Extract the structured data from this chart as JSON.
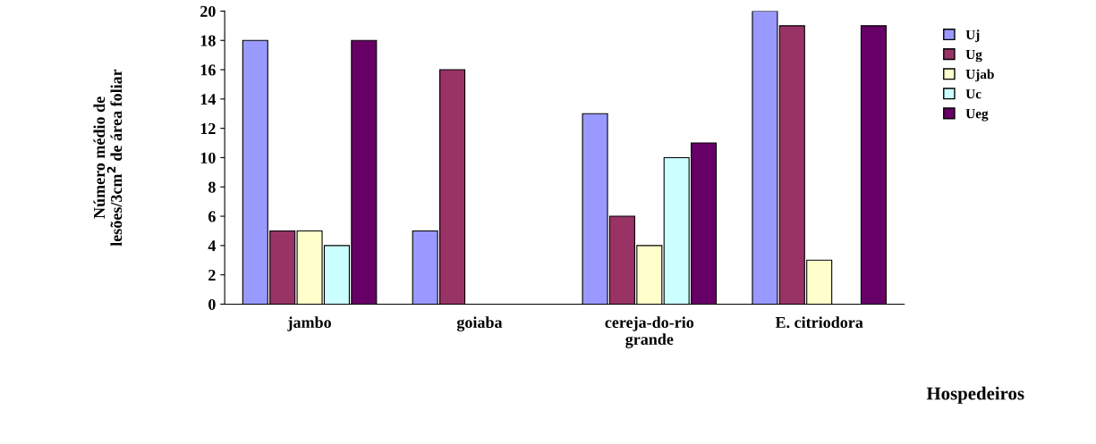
{
  "chart_data": {
    "type": "bar",
    "xlabel": "Hospedeiros",
    "ylabel": "Número médio de\nlesões/3cm$^{2}$ de área foliar",
    "categories": [
      "jambo",
      "goiaba",
      "cereja-do-rio\ngrande",
      "E. citriodora"
    ],
    "series": [
      {
        "name": "Uj",
        "color": "#9999ff",
        "values": [
          18,
          5,
          13,
          20
        ]
      },
      {
        "name": "Ug",
        "color": "#993366",
        "values": [
          5,
          16,
          6,
          19
        ]
      },
      {
        "name": "Ujab",
        "color": "#ffffcc",
        "values": [
          5,
          0,
          4,
          3
        ]
      },
      {
        "name": "Uc",
        "color": "#ccffff",
        "values": [
          4,
          0,
          10,
          0
        ]
      },
      {
        "name": "Ueg",
        "color": "#660066",
        "values": [
          18,
          0,
          11,
          19
        ]
      }
    ],
    "ylim": [
      0,
      20
    ],
    "yticks": [
      0,
      2,
      4,
      6,
      8,
      10,
      12,
      14,
      16,
      18,
      20
    ],
    "grid": false,
    "legend": "right"
  }
}
